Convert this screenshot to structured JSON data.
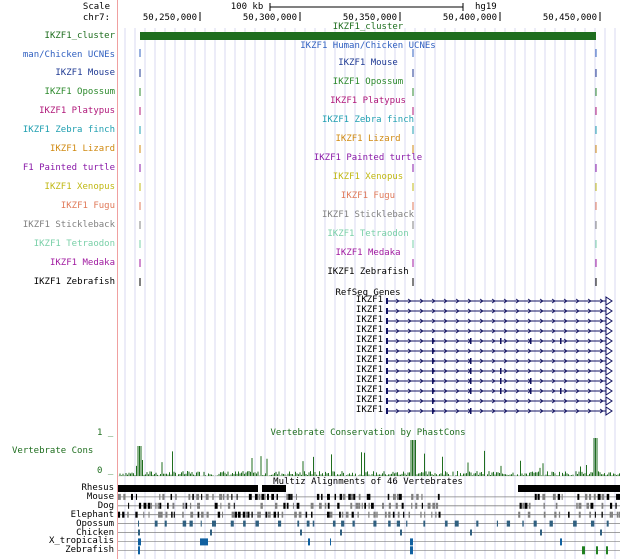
{
  "header": {
    "scale_label": "Scale",
    "scale_value": "100 kb",
    "assembly": "hg19",
    "chrom_label": "chr7:",
    "coords": [
      "50,250,000",
      "50,300,000",
      "50,350,000",
      "50,400,000",
      "50,450,000"
    ]
  },
  "cluster": {
    "label": "IKZF1_cluster",
    "title": "IKZF1_cluster"
  },
  "ucne_header": {
    "label": "man/Chicken UCNEs",
    "title": "IKZF1 Human/Chicken UCNEs"
  },
  "species_tracks": [
    {
      "label": "IKZF1 Mouse",
      "title": "IKZF1 Mouse",
      "color": "#1f3a93"
    },
    {
      "label": "IKZF1 Opossum",
      "title": "IKZF1 Opossum",
      "color": "#2d8a2d"
    },
    {
      "label": "IKZF1 Platypus",
      "title": "IKZF1 Platypus",
      "color": "#b0187a"
    },
    {
      "label": "IKZF1 Zebra finch",
      "title": "IKZF1 Zebra finch",
      "color": "#1f9fb0"
    },
    {
      "label": "IKZF1 Lizard",
      "title": "IKZF1 Lizard",
      "color": "#d08a12"
    },
    {
      "label": "F1 Painted turtle",
      "title": "IKZF1 Painted turtle",
      "color": "#8a1aa8"
    },
    {
      "label": "IKZF1 Xenopus",
      "title": "IKZF1 Xenopus",
      "color": "#c0b814"
    },
    {
      "label": "IKZF1 Fugu",
      "title": "IKZF1 Fugu",
      "color": "#e07a5a"
    },
    {
      "label": "IKZF1 Stickleback",
      "title": "IKZF1 Stickleback",
      "color": "#808080"
    },
    {
      "label": "IKZF1 Tetraodon",
      "title": "IKZF1 Tetraodon",
      "color": "#7ad0a8"
    },
    {
      "label": "IKZF1 Medaka",
      "title": "IKZF1 Medaka",
      "color": "#a01aa0"
    },
    {
      "label": "IKZF1 Zebrafish",
      "title": "IKZF1 Zebrafish",
      "color": "#000000"
    }
  ],
  "refseq": {
    "title": "RefSeq Genes",
    "genes": [
      "IKZF1",
      "IKZF1",
      "IKZF1",
      "IKZF1",
      "IKZF1",
      "IKZF1",
      "IKZF1",
      "IKZF1",
      "IKZF1",
      "IKZF1",
      "IKZF1",
      "IKZF1"
    ]
  },
  "conservation": {
    "label": "Vertebrate Cons",
    "title": "Vertebrate Conservation by PhastCons",
    "y_max": "1 _",
    "y_min": "0 _"
  },
  "multiz": {
    "title": "Multiz Alignments of 46 Vertebrates",
    "species": [
      "Rhesus",
      "Mouse",
      "Dog",
      "Elephant",
      "Opossum",
      "Chicken",
      "X_tropicalis",
      "Zebrafish"
    ]
  },
  "colors": {
    "cluster_green": "#1f6e1f",
    "cons_green": "#1f6e1f",
    "gene_navy": "#101060",
    "ucne_blue": "#3060c0",
    "grid": "#d8d8f0",
    "label_divider": "#f0a0a0",
    "multiz_black": "#000000",
    "multiz_gray": "#808080",
    "chicken_teal": "#306080",
    "xtrop_blue": "#1060a0",
    "zebrafish_green": "#208020"
  }
}
